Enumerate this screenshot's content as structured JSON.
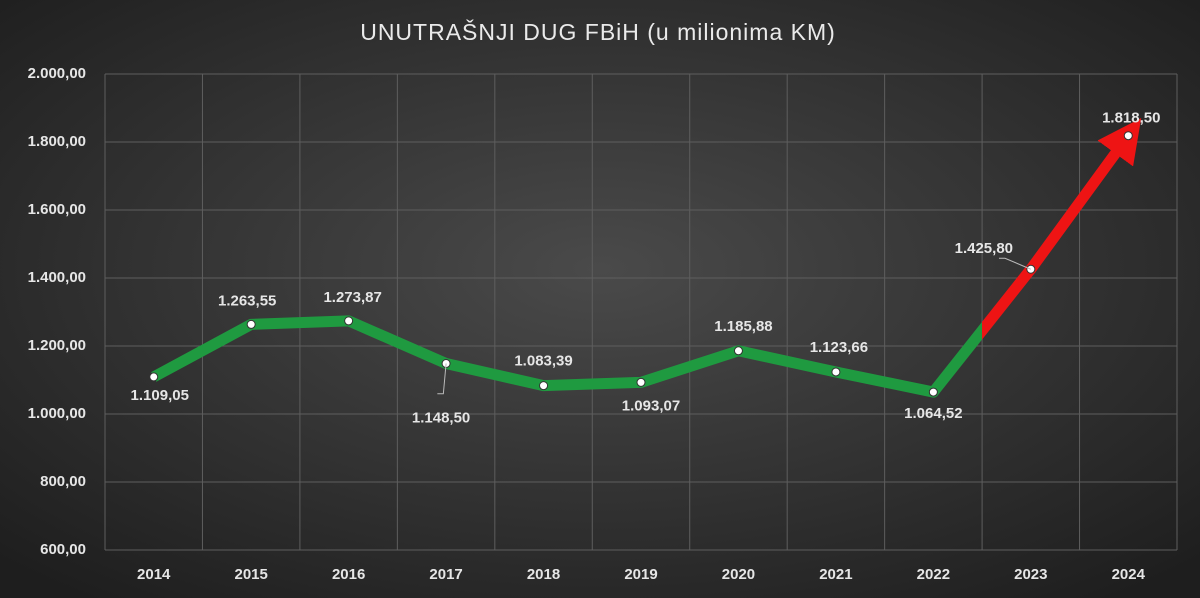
{
  "chart_data": {
    "type": "line",
    "title": "UNUTRAŠNJI DUG FBiH (u milionima KM)",
    "categories": [
      "2014",
      "2015",
      "2016",
      "2017",
      "2018",
      "2019",
      "2020",
      "2021",
      "2022",
      "2023",
      "2024"
    ],
    "series": [
      {
        "name": "Unutrašnji dug",
        "color": "#1f9a40",
        "highlight_color": "#ee1414",
        "values": [
          1109.05,
          1263.55,
          1273.87,
          1148.5,
          1083.39,
          1093.07,
          1185.88,
          1123.66,
          1064.52,
          1425.8,
          1818.5
        ],
        "value_labels": [
          "1.109,05",
          "1.263,55",
          "1.273,87",
          "1.148,50",
          "1.083,39",
          "1.093,07",
          "1.185,88",
          "1.123,66",
          "1.064,52",
          "1.425,80",
          "1.818,50"
        ]
      }
    ],
    "ylim": [
      600,
      2000
    ],
    "yticks": [
      {
        "value": 600,
        "label": "600,00"
      },
      {
        "value": 800,
        "label": "800,00"
      },
      {
        "value": 1000,
        "label": "1.000,00"
      },
      {
        "value": 1200,
        "label": "1.200,00"
      },
      {
        "value": 1400,
        "label": "1.400,00"
      },
      {
        "value": 1600,
        "label": "1.600,00"
      },
      {
        "value": 1800,
        "label": "1.800,00"
      },
      {
        "value": 2000,
        "label": "2.000,00"
      }
    ],
    "grid": true
  }
}
